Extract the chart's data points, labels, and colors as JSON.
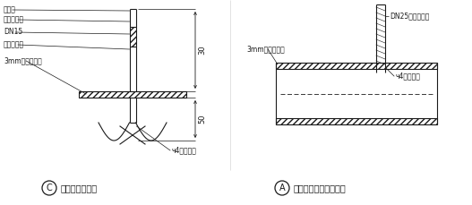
{
  "background_color": "#ffffff",
  "line_color": "#1a1a1a",
  "text_color": "#1a1a1a",
  "fig_width": 5.27,
  "fig_height": 2.29,
  "dpi": 100,
  "left": {
    "circle_label": "C",
    "title": "压差测量管详图",
    "label0": "设球阀",
    "label1": "不用时关闭",
    "label2": "DN15",
    "label3": "热镇锌铜管",
    "label4": "3mm厉风管鈢板",
    "label5": "ч4气密焊接",
    "dim1": "30",
    "dim2": "50"
  },
  "right": {
    "circle_label": "A",
    "title": "增压管与风管连接详图",
    "label0": "DN25热镇锌鈢管",
    "label1": "3mm厉风管鈢板",
    "label2": "ч4气密焊接"
  }
}
